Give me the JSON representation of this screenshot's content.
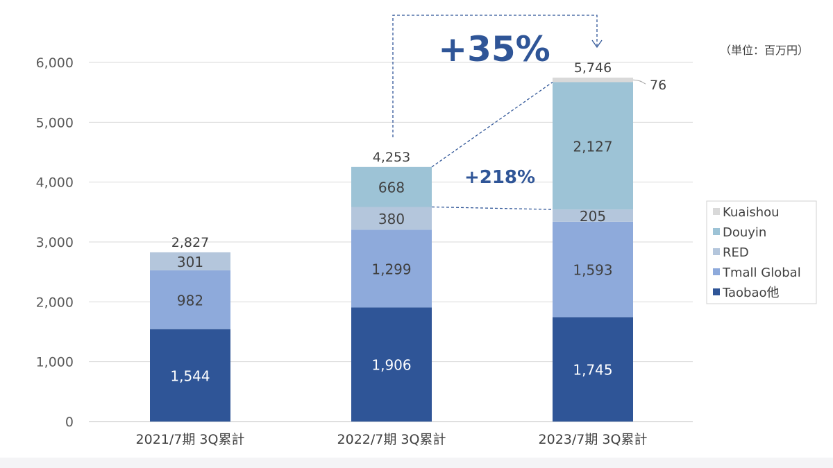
{
  "chart_data": {
    "type": "bar",
    "stacked": true,
    "categories": [
      "2021/7期 3Q累計",
      "2022/7期 3Q累計",
      "2023/7期 3Q累計"
    ],
    "series": [
      {
        "name": "Taobao他",
        "values": [
          1544,
          1906,
          1745
        ],
        "color": "#2f5597",
        "label_color": "#ffffff"
      },
      {
        "name": "Tmall Global",
        "values": [
          982,
          1299,
          1593
        ],
        "color": "#8eaadb",
        "label_color": "#404040"
      },
      {
        "name": "RED",
        "values": [
          301,
          380,
          205
        ],
        "color": "#b4c6dc",
        "label_color": "#404040"
      },
      {
        "name": "Douyin",
        "values": [
          0,
          668,
          2127
        ],
        "color": "#9dc3d6",
        "label_color": "#404040"
      },
      {
        "name": "Kuaishou",
        "values": [
          0,
          0,
          76
        ],
        "color": "#d9d9d9",
        "label_color": "#404040"
      }
    ],
    "segment_labels": [
      [
        "1,544",
        "982",
        "301",
        "",
        ""
      ],
      [
        "1,906",
        "1,299",
        "380",
        "668",
        ""
      ],
      [
        "1,745",
        "1,593",
        "205",
        "2,127",
        ""
      ]
    ],
    "totals": [
      "2,827",
      "4,253",
      "5,746"
    ],
    "kuaishou_callout": "76",
    "ylim": [
      0,
      6000
    ],
    "yticks": [
      "0",
      "1,000",
      "2,000",
      "3,000",
      "4,000",
      "5,000",
      "6,000"
    ],
    "ytick_values": [
      0,
      1000,
      2000,
      3000,
      4000,
      5000,
      6000
    ],
    "unit_label": "（単位：百万円）",
    "growth_total": "+35%",
    "growth_douyin": "+218%",
    "grid": true,
    "legend_position": "right"
  }
}
